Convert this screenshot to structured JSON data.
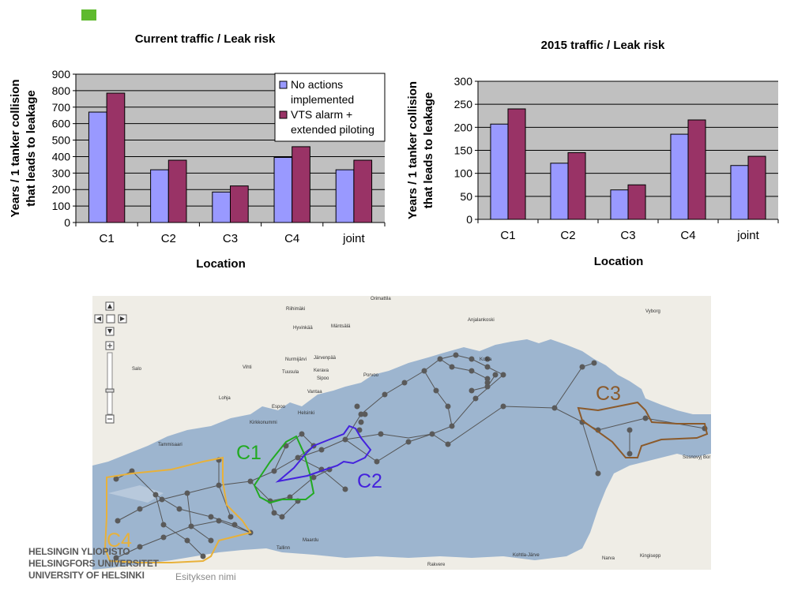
{
  "colors": {
    "no_actions": "#9999ff",
    "vts": "#993366",
    "plot_bg": "#c0c0c0",
    "sea": "#9db5cf",
    "land": "#efede6",
    "c1": "#22aa22",
    "c2": "#4422dd",
    "c3": "#8b5a2b",
    "c4": "#e8b13a",
    "logo_square": "#5fba2e"
  },
  "chart_data": [
    {
      "type": "bar",
      "title": "Current traffic / Leak risk",
      "xlabel": "Location",
      "ylabel": "Years / 1 tanker collision that leads to leakage",
      "ylabel_lines": [
        "Years / 1 tanker collision",
        "that leads to leakage"
      ],
      "ylim": [
        0,
        900
      ],
      "yticks": [
        0,
        100,
        200,
        300,
        400,
        500,
        600,
        700,
        800,
        900
      ],
      "categories": [
        "C1",
        "C2",
        "C3",
        "C4",
        "joint"
      ],
      "series": [
        {
          "name": "No actions implemented",
          "name_lines": [
            "No actions",
            "implemented"
          ],
          "values": [
            670,
            320,
            185,
            395,
            320
          ]
        },
        {
          "name": "VTS alarm + extended piloting",
          "name_lines": [
            "VTS alarm +",
            "extended piloting"
          ],
          "values": [
            785,
            378,
            222,
            460,
            378
          ]
        }
      ],
      "grid": true,
      "legend": "top-right"
    },
    {
      "type": "bar",
      "title": "2015 traffic / Leak risk",
      "xlabel": "Location",
      "ylabel": "Years / 1 tanker collision that leads to leakage",
      "ylabel_lines": [
        "Years / 1 tanker collision",
        "that leads to leakage"
      ],
      "ylim": [
        0,
        300
      ],
      "yticks": [
        0,
        50,
        100,
        150,
        200,
        250,
        300
      ],
      "categories": [
        "C1",
        "C2",
        "C3",
        "C4",
        "joint"
      ],
      "series": [
        {
          "name": "No actions implemented",
          "values": [
            207,
            122,
            64,
            185,
            117
          ]
        },
        {
          "name": "VTS alarm + extended piloting",
          "values": [
            240,
            145,
            75,
            216,
            137
          ]
        }
      ],
      "grid": true,
      "legend": "none"
    }
  ],
  "map": {
    "regions": [
      "C1",
      "C2",
      "C3",
      "C4"
    ],
    "places": [
      "Orimattila",
      "Riihimäki",
      "Hyvinkää",
      "Mäntsälä",
      "Anjalankoski",
      "Vyborg",
      "Nurmijärvi",
      "Järvenpää",
      "Vihti",
      "Tuusula",
      "Kerava",
      "Sipoo",
      "Porvoo",
      "Kotka",
      "Salo",
      "Vantaa",
      "Lohja",
      "Espoo",
      "Helsinki",
      "Kirkkonummi",
      "Tammisaari",
      "Sosnovyj Bor",
      "Maardu",
      "Tallinn",
      "Kohtla-Järve",
      "Narva",
      "Kingisepp",
      "Rakvere"
    ]
  },
  "footer": {
    "logo_lines": [
      "HELSINGIN YLIOPISTO",
      "HELSINGFORS UNIVERSITET",
      "UNIVERSITY OF HELSINKI"
    ],
    "presentation_name": "Esityksen nimi"
  }
}
